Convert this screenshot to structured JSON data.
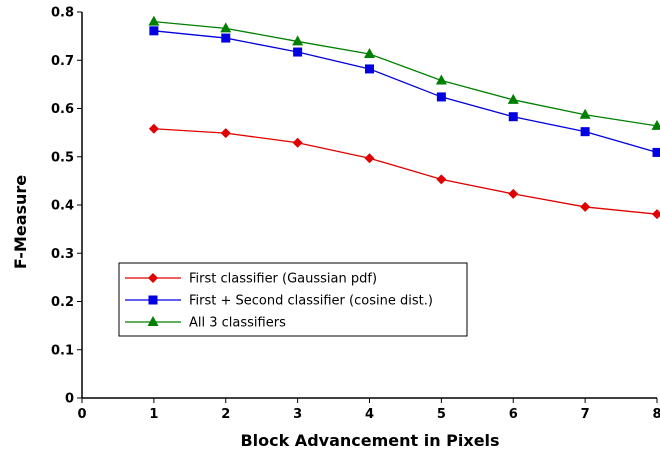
{
  "chart_data": {
    "type": "line",
    "title": "",
    "xlabel": "Block Advancement in Pixels",
    "ylabel": "F-Measure",
    "xlim": [
      0,
      8
    ],
    "ylim": [
      0,
      0.8
    ],
    "x_ticks": [
      "0",
      "1",
      "2",
      "3",
      "4",
      "5",
      "6",
      "7",
      "8"
    ],
    "y_ticks": [
      "0",
      "0.1",
      "0.2",
      "0.3",
      "0.4",
      "0.5",
      "0.6",
      "0.7",
      "0.8"
    ],
    "grid": false,
    "legend_position": "lower-left",
    "x": [
      1,
      2,
      3,
      4,
      5,
      6,
      7,
      8
    ],
    "series": [
      {
        "name": "First classifier (Gaussian pdf)",
        "color": "#e00000",
        "marker": "diamond",
        "values": [
          0.558,
          0.549,
          0.529,
          0.497,
          0.453,
          0.423,
          0.396,
          0.381
        ]
      },
      {
        "name": "First + Second classifier (cosine dist.)",
        "color": "#0000e0",
        "marker": "square",
        "values": [
          0.761,
          0.746,
          0.717,
          0.682,
          0.624,
          0.583,
          0.552,
          0.509
        ]
      },
      {
        "name": "All 3 classifiers",
        "color": "#008000",
        "marker": "triangle",
        "values": [
          0.78,
          0.766,
          0.739,
          0.713,
          0.658,
          0.618,
          0.587,
          0.564
        ]
      }
    ]
  }
}
